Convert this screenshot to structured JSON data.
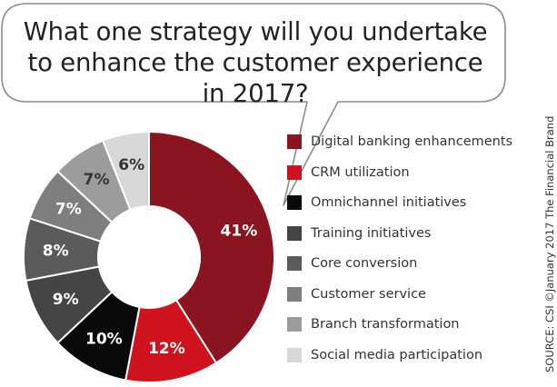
{
  "title": "What one strategy will you undertake to enhance the customer experience in 2017?",
  "source": "SOURCE: CSI ©January 2017 The Financial Brand",
  "chart_data": {
    "type": "pie",
    "title": "What one strategy will you undertake to enhance the customer experience in 2017?",
    "legend_position": "right",
    "categories": [
      "Digital banking enhancements",
      "CRM utilization",
      "Omnichannel initiatives",
      "Training initiatives",
      "Core conversion",
      "Customer service",
      "Branch transformation",
      "Social media participation"
    ],
    "values": [
      41,
      12,
      10,
      9,
      8,
      7,
      7,
      6
    ],
    "value_labels": [
      "41%",
      "12%",
      "10%",
      "9%",
      "8%",
      "7%",
      "7%",
      "6%"
    ],
    "colors": [
      "#8a1420",
      "#d0121e",
      "#0a0a0a",
      "#454545",
      "#5b5b5b",
      "#7e7e7e",
      "#9c9c9c",
      "#d8d8d8"
    ],
    "label_colors": [
      "#ffffff",
      "#ffffff",
      "#ffffff",
      "#ffffff",
      "#ffffff",
      "#ffffff",
      "#333333",
      "#333333"
    ]
  }
}
